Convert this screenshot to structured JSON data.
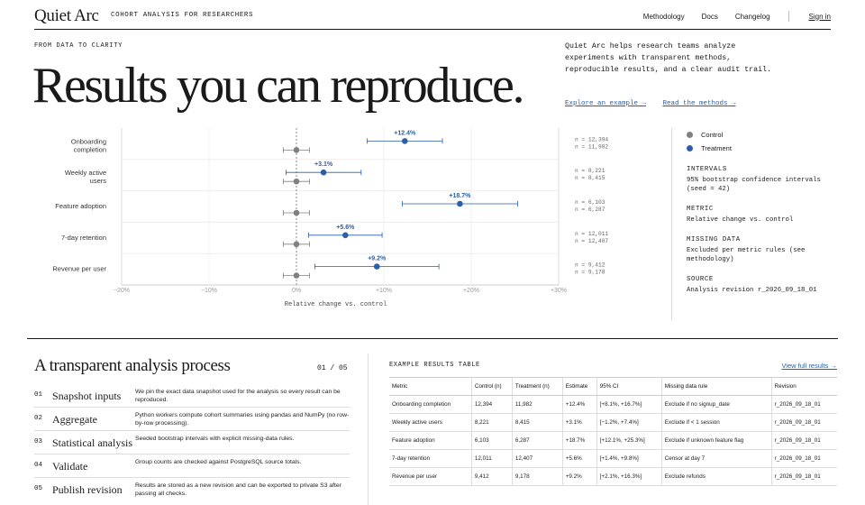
{
  "header": {
    "logo": "Quiet Arc",
    "tagline": "COHORT ANALYSIS FOR RESEARCHERS",
    "nav": [
      "Methodology",
      "Docs",
      "Changelog"
    ],
    "signin": "Sign in"
  },
  "hero": {
    "kicker": "FROM DATA TO CLARITY",
    "title": "Results you can reproduce.",
    "description": "Quiet Arc helps research teams analyze experiments with transparent methods, reproducible results, and a clear audit trail.",
    "link_example": "Explore an example →",
    "link_methods": "Read the methods →"
  },
  "colors": {
    "control": "#808080",
    "treatment": "#2a5faa",
    "accent": "#2a5faa"
  },
  "chart_data": {
    "type": "scatter",
    "xlabel": "Relative change vs. control",
    "xlim": [
      -20,
      30
    ],
    "x_ticks": [
      "−20%",
      "−10%",
      "0%",
      "+10%",
      "+20%",
      "+30%"
    ],
    "x_tick_values": [
      -20,
      -10,
      0,
      10,
      20,
      30
    ],
    "categories": [
      "Onboarding completion",
      "Weekly active users",
      "Feature adoption",
      "7-day retention",
      "Revenue per user"
    ],
    "category_lines": [
      [
        "Onboarding",
        "completion"
      ],
      [
        "Weekly active",
        "users"
      ],
      [
        "Feature adoption"
      ],
      [
        "7-day retention"
      ],
      [
        "Revenue per user"
      ]
    ],
    "control": [
      {
        "value": 0,
        "ci": [
          -1.5,
          1.5
        ]
      },
      {
        "value": 0,
        "ci": [
          -1.5,
          1.5
        ]
      },
      {
        "value": 0,
        "ci": [
          -1.5,
          1.5
        ]
      },
      {
        "value": 0,
        "ci": [
          -1.5,
          1.5
        ]
      },
      {
        "value": 0,
        "ci": [
          -1.5,
          1.5
        ]
      }
    ],
    "treatment": [
      {
        "value": 12.4,
        "ci": [
          8.1,
          16.7
        ],
        "label": "+12.4%"
      },
      {
        "value": 3.1,
        "ci": [
          -1.2,
          7.4
        ],
        "label": "+3.1%"
      },
      {
        "value": 18.7,
        "ci": [
          12.1,
          25.3
        ],
        "label": "+18.7%"
      },
      {
        "value": 5.6,
        "ci": [
          1.4,
          9.8
        ],
        "label": "+5.6%"
      },
      {
        "value": 9.2,
        "ci": [
          2.1,
          16.3
        ],
        "label": "+9.2%"
      }
    ],
    "n_labels": [
      [
        "n = 12,394",
        "n = 11,982"
      ],
      [
        "n = 8,221",
        "n = 8,415"
      ],
      [
        "n = 6,103",
        "n = 6,287"
      ],
      [
        "n = 12,011",
        "n = 12,407"
      ],
      [
        "n = 9,412",
        "n = 9,178"
      ]
    ]
  },
  "side": {
    "legend_control": "Control",
    "legend_treatment": "Treatment",
    "sections": [
      {
        "heading": "INTERVALS",
        "text": "95% bootstrap confidence intervals (seed = 42)"
      },
      {
        "heading": "METRIC",
        "text": "Relative change vs. control"
      },
      {
        "heading": "MISSING DATA",
        "text": "Excluded per metric rules (see methodology)"
      },
      {
        "heading": "SOURCE",
        "text": "Analysis revision r_2026_09_18_01"
      }
    ]
  },
  "process": {
    "title": "A transparent analysis process",
    "count": "01 / 05",
    "steps": [
      {
        "num": "01",
        "name": "Snapshot inputs",
        "desc": "We pin the exact data snapshot used for the analysis so every result can be reproduced."
      },
      {
        "num": "02",
        "name": "Aggregate",
        "desc": "Python workers compute cohort summaries using pandas and NumPy (no row-by-row processing)."
      },
      {
        "num": "03",
        "name": "Statistical analysis",
        "desc": "Seeded bootstrap intervals with explicit missing-data rules."
      },
      {
        "num": "04",
        "name": "Validate",
        "desc": "Group counts are checked against PostgreSQL source totals."
      },
      {
        "num": "05",
        "name": "Publish revision",
        "desc": "Results are stored as a new revision and can be exported to private S3 after passing all checks."
      }
    ]
  },
  "table": {
    "title": "EXAMPLE RESULTS TABLE",
    "link": "View full results →",
    "headers": [
      "Metric",
      "Control (n)",
      "Treatment (n)",
      "Estimate",
      "95% CI",
      "Missing data rule",
      "Revision"
    ],
    "rows": [
      [
        "Onboarding completion",
        "12,394",
        "11,982",
        "+12.4%",
        "[+8.1%, +16.7%]",
        "Exclude if no signup_date",
        "r_2026_09_18_01"
      ],
      [
        "Weekly active users",
        "8,221",
        "8,415",
        "+3.1%",
        "[−1.2%, +7.4%]",
        "Exclude if < 1 session",
        "r_2026_09_18_01"
      ],
      [
        "Feature adoption",
        "6,103",
        "6,287",
        "+18.7%",
        "[+12.1%, +25.3%]",
        "Exclude if unknown feature flag",
        "r_2026_09_18_01"
      ],
      [
        "7-day retention",
        "12,011",
        "12,407",
        "+5.6%",
        "[+1.4%, +9.8%]",
        "Censor at day 7",
        "r_2026_09_18_01"
      ],
      [
        "Revenue per user",
        "9,412",
        "9,178",
        "+9.2%",
        "[+2.1%, +16.3%]",
        "Exclude refunds",
        "r_2026_09_18_01"
      ]
    ]
  }
}
